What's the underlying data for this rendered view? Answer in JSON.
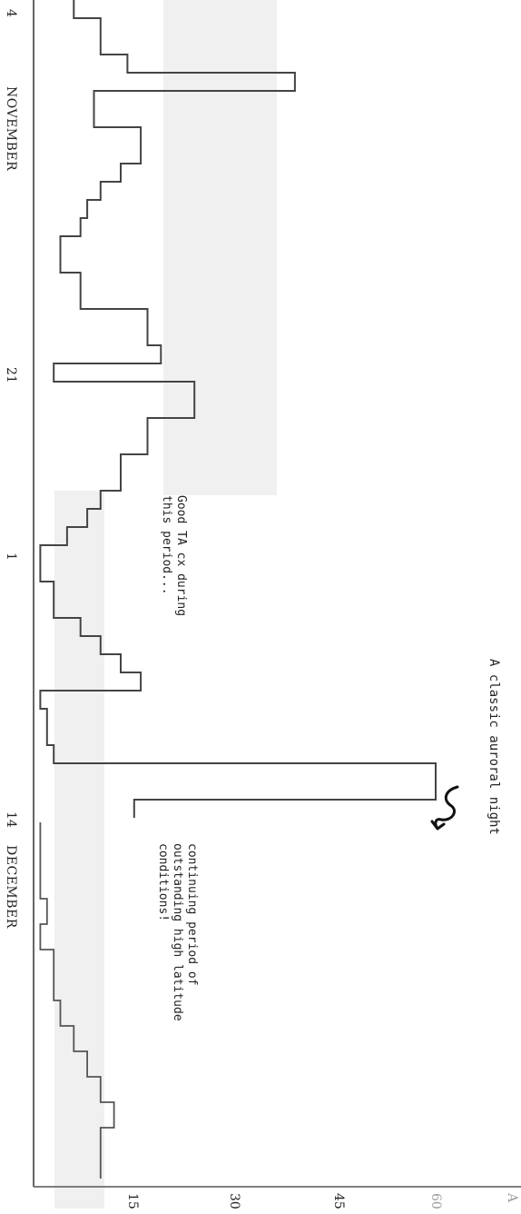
{
  "chart_data": {
    "type": "line",
    "orientation": "rotated-90",
    "months": [
      "NOVEMBER",
      "DECEMBER"
    ],
    "day_ticks": [
      "4",
      "21",
      "1",
      "14"
    ],
    "ap_ticks": [
      15,
      30,
      45,
      60
    ],
    "axis_label_fragment": "A",
    "ap_range": [
      0,
      70
    ],
    "series": [
      {
        "values": [
          6,
          10,
          10,
          14,
          39,
          9,
          9,
          16,
          16,
          13,
          10,
          8,
          7,
          4,
          4,
          7,
          7,
          17,
          17,
          19,
          3,
          24,
          24,
          17,
          17,
          13,
          13,
          10,
          8,
          5,
          1,
          1,
          3,
          3,
          7,
          10,
          13,
          16,
          1,
          2,
          2,
          3,
          60,
          60,
          15
        ]
      },
      {
        "values": [
          1,
          1,
          1,
          2,
          1,
          3,
          3,
          4,
          6,
          8,
          10,
          12,
          10,
          10
        ]
      }
    ],
    "annotations": [
      {
        "text": [
          "Good TA cx during",
          "this period..."
        ]
      },
      {
        "text": [
          "A classic auroral night"
        ]
      },
      {
        "text": [
          "continuing period of",
          "outstanding high latitude",
          "conditions!"
        ]
      }
    ]
  }
}
